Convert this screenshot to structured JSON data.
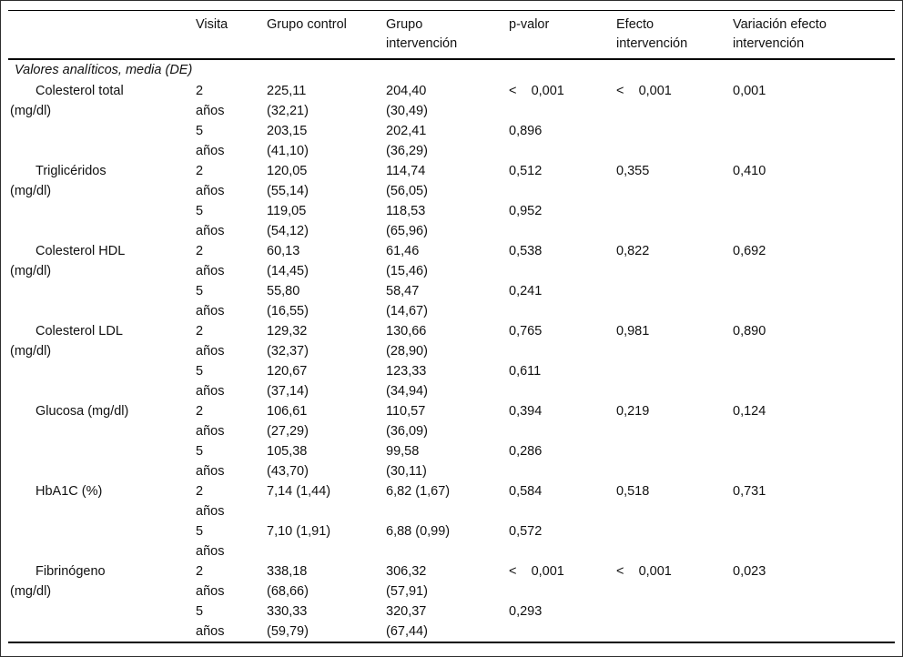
{
  "meta": {
    "colors": {
      "background": "#ffffff",
      "text": "#111111",
      "rule": "#000000"
    }
  },
  "table": {
    "header": {
      "columns": [
        "",
        "Visita",
        "Grupo control",
        "Grupo\nintervención",
        "p-valor",
        "Efecto\nintervención",
        "Variación efecto\nintervención"
      ]
    },
    "section": "Valores analíticos, media (DE)",
    "rows": [
      {
        "name": "Colesterol total",
        "unit": "(mg/dl)",
        "visits": [
          {
            "visit": "2",
            "visit_unit": "años",
            "control": "225,11",
            "control_sd": "(32,21)",
            "interv": "204,40",
            "interv_sd": "(30,49)",
            "p": "<    0,001",
            "efecto": "<    0,001",
            "variacion": "0,001"
          },
          {
            "visit": "5",
            "visit_unit": "años",
            "control": "203,15",
            "control_sd": "(41,10)",
            "interv": "202,41",
            "interv_sd": "(36,29)",
            "p": "0,896",
            "efecto": "",
            "variacion": ""
          }
        ]
      },
      {
        "name": "Triglicéridos",
        "unit": "(mg/dl)",
        "visits": [
          {
            "visit": "2",
            "visit_unit": "años",
            "control": "120,05",
            "control_sd": "(55,14)",
            "interv": "114,74",
            "interv_sd": "(56,05)",
            "p": "0,512",
            "efecto": "0,355",
            "variacion": "0,410"
          },
          {
            "visit": "5",
            "visit_unit": "años",
            "control": "119,05",
            "control_sd": "(54,12)",
            "interv": "118,53",
            "interv_sd": "(65,96)",
            "p": "0,952",
            "efecto": "",
            "variacion": ""
          }
        ]
      },
      {
        "name": "Colesterol HDL",
        "unit": "(mg/dl)",
        "visits": [
          {
            "visit": "2",
            "visit_unit": "años",
            "control": "60,13",
            "control_sd": "(14,45)",
            "interv": "61,46",
            "interv_sd": "(15,46)",
            "p": "0,538",
            "efecto": "0,822",
            "variacion": "0,692"
          },
          {
            "visit": "5",
            "visit_unit": "años",
            "control": "55,80",
            "control_sd": "(16,55)",
            "interv": "58,47",
            "interv_sd": "(14,67)",
            "p": "0,241",
            "efecto": "",
            "variacion": ""
          }
        ]
      },
      {
        "name": "Colesterol LDL",
        "unit": "(mg/dl)",
        "visits": [
          {
            "visit": "2",
            "visit_unit": "años",
            "control": "129,32",
            "control_sd": "(32,37)",
            "interv": "130,66",
            "interv_sd": "(28,90)",
            "p": "0,765",
            "efecto": "0,981",
            "variacion": "0,890"
          },
          {
            "visit": "5",
            "visit_unit": "años",
            "control": "120,67",
            "control_sd": "(37,14)",
            "interv": "123,33",
            "interv_sd": "(34,94)",
            "p": "0,611",
            "efecto": "",
            "variacion": ""
          }
        ]
      },
      {
        "name": "Glucosa (mg/dl)",
        "unit": "",
        "visits": [
          {
            "visit": "2",
            "visit_unit": "años",
            "control": "106,61",
            "control_sd": "(27,29)",
            "interv": "110,57",
            "interv_sd": "(36,09)",
            "p": "0,394",
            "efecto": "0,219",
            "variacion": "0,124"
          },
          {
            "visit": "5",
            "visit_unit": "años",
            "control": "105,38",
            "control_sd": "(43,70)",
            "interv": "99,58",
            "interv_sd": "(30,11)",
            "p": "0,286",
            "efecto": "",
            "variacion": ""
          }
        ]
      },
      {
        "name": "HbA1C (%)",
        "unit": "",
        "visits": [
          {
            "visit": "2",
            "visit_unit": "años",
            "control": "7,14 (1,44)",
            "control_sd": "",
            "interv": "6,82 (1,67)",
            "interv_sd": "",
            "p": "0,584",
            "efecto": "0,518",
            "variacion": "0,731"
          },
          {
            "visit": "5",
            "visit_unit": "años",
            "control": "7,10 (1,91)",
            "control_sd": "",
            "interv": "6,88 (0,99)",
            "interv_sd": "",
            "p": "0,572",
            "efecto": "",
            "variacion": ""
          }
        ]
      },
      {
        "name": "Fibrinógeno",
        "unit": "(mg/dl)",
        "visits": [
          {
            "visit": "2",
            "visit_unit": "años",
            "control": "338,18",
            "control_sd": "(68,66)",
            "interv": "306,32",
            "interv_sd": "(57,91)",
            "p": "<    0,001",
            "efecto": "<    0,001",
            "variacion": "0,023"
          },
          {
            "visit": "5",
            "visit_unit": "años",
            "control": "330,33",
            "control_sd": "(59,79)",
            "interv": "320,37",
            "interv_sd": "(67,44)",
            "p": "0,293",
            "efecto": "",
            "variacion": ""
          }
        ]
      }
    ]
  }
}
